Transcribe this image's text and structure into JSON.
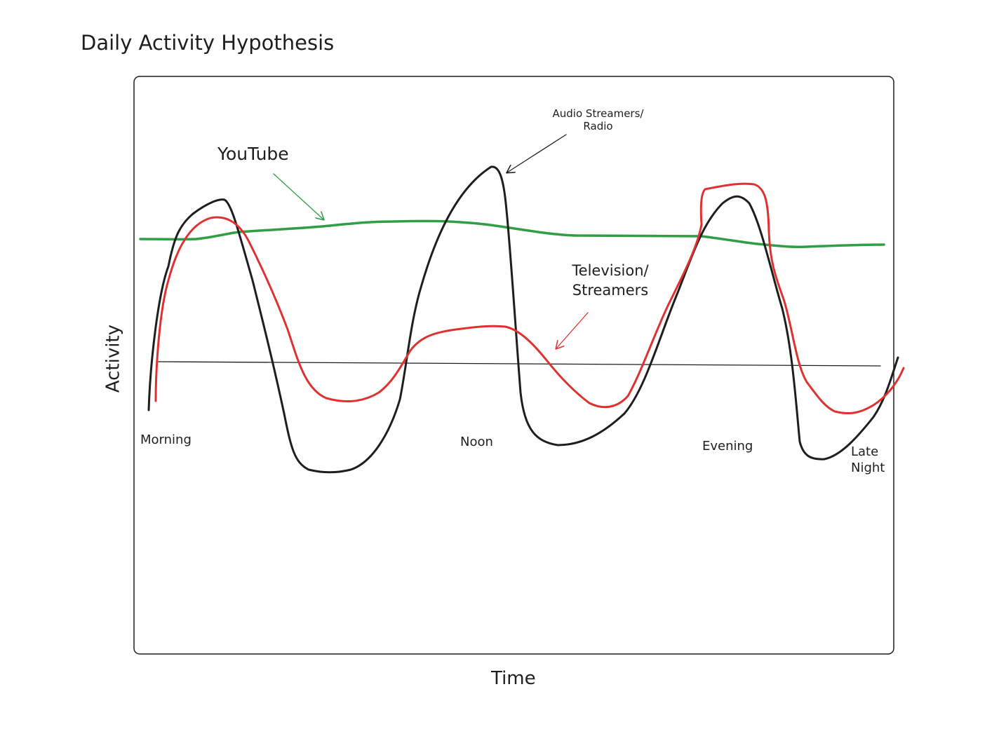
{
  "title": "Daily Activity Hypothesis",
  "axes": {
    "x_label": "Time",
    "y_label": "Activity"
  },
  "time_labels": [
    "Morning",
    "Noon",
    "Evening",
    "Late Night"
  ],
  "annotations": {
    "youtube": "YouTube",
    "audio": "Audio Streamers/ Radio",
    "television": "Television/ Streamers"
  }
}
